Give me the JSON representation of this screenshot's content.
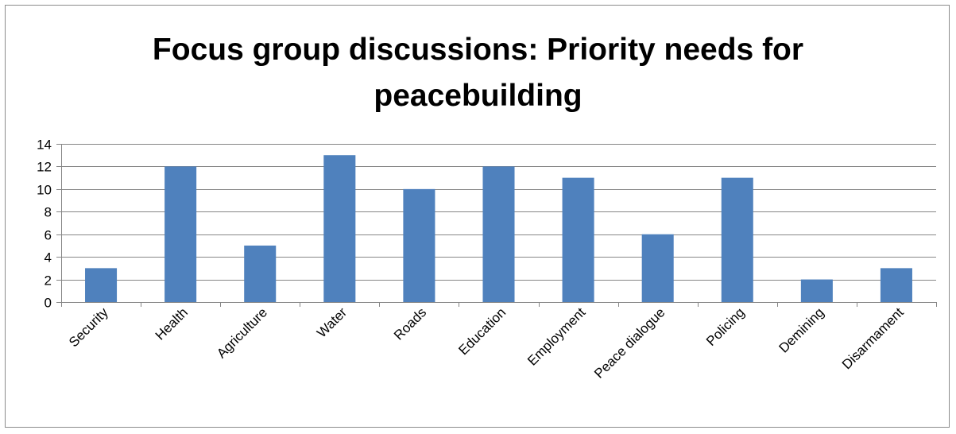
{
  "chart_data": {
    "type": "bar",
    "title_lines": [
      "Focus group discussions: Priority needs for",
      "peacebuilding"
    ],
    "categories": [
      "Security",
      "Health",
      "Agriculture",
      "Water",
      "Roads",
      "Education",
      "Employment",
      "Peace dialogue",
      "Policing",
      "Demining",
      "Disarmament"
    ],
    "values": [
      3,
      12,
      5,
      13,
      10,
      12,
      11,
      6,
      11,
      2,
      3
    ],
    "ylim": [
      0,
      14
    ],
    "yticks": [
      0,
      2,
      4,
      6,
      8,
      10,
      12,
      14
    ],
    "grid": true,
    "legend": "none",
    "bar_color": "#4F81BD",
    "grid_color": "#868686"
  }
}
